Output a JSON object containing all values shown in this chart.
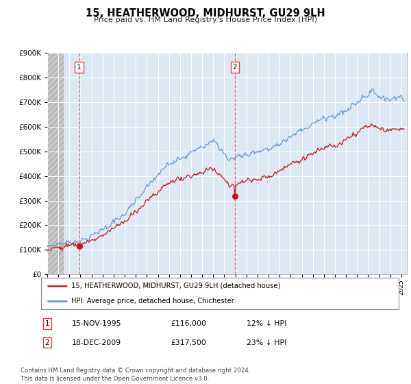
{
  "title": "15, HEATHERWOOD, MIDHURST, GU29 9LH",
  "subtitle": "Price paid vs. HM Land Registry's House Price Index (HPI)",
  "legend_line1": "15, HEATHERWOOD, MIDHURST, GU29 9LH (detached house)",
  "legend_line2": "HPI: Average price, detached house, Chichester",
  "sale1_label": "1",
  "sale1_date": "15-NOV-1995",
  "sale1_price": "£116,000",
  "sale1_hpi": "12% ↓ HPI",
  "sale2_label": "2",
  "sale2_date": "18-DEC-2009",
  "sale2_price": "£317,500",
  "sale2_hpi": "23% ↓ HPI",
  "footnote": "Contains HM Land Registry data © Crown copyright and database right 2024.\nThis data is licensed under the Open Government Licence v3.0.",
  "bg_color": "#ffffff",
  "plot_bg_color": "#dce9f5",
  "hatch_bg_color": "#e8e8e8",
  "grid_color": "#ffffff",
  "hpi_line_color": "#5b8fc9",
  "price_line_color": "#cc1111",
  "vline_color": "#dd4444",
  "ylim": [
    0,
    900000
  ],
  "yticks": [
    0,
    100000,
    200000,
    300000,
    400000,
    500000,
    600000,
    700000,
    800000,
    900000
  ],
  "sale1_x": 1995.88,
  "sale1_y": 116000,
  "sale2_x": 2009.96,
  "sale2_y": 317500,
  "xmin": 1993.0,
  "xmax": 2025.5
}
